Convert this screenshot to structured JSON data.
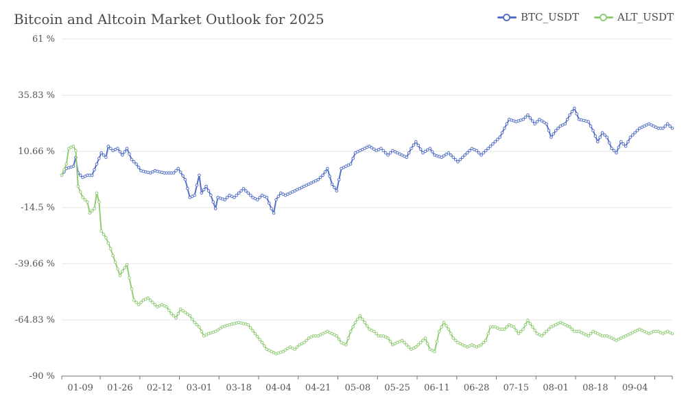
{
  "chart_data": {
    "type": "line",
    "title": "Bitcoin and Altcoin Market Outlook for 2025",
    "y_unit": "%",
    "ylim": [
      -90,
      61
    ],
    "y_ticks": [
      "61 %",
      "35.83 %",
      "10.66 %",
      "-14.5 %",
      "-39.66 %",
      "-64.83 %",
      "-90 %"
    ],
    "y_tick_values": [
      61,
      35.83,
      10.66,
      -14.5,
      -39.66,
      -64.83,
      -90
    ],
    "x_ticks": [
      "01-09",
      "01-26",
      "02-12",
      "03-01",
      "03-18",
      "04-04",
      "04-21",
      "05-08",
      "05-25",
      "06-11",
      "06-28",
      "07-15",
      "08-01",
      "08-18",
      "09-04"
    ],
    "x_tick_day_index": [
      8,
      25,
      42,
      59,
      76,
      93,
      110,
      127,
      144,
      161,
      178,
      195,
      212,
      229,
      246
    ],
    "x_range_days": [
      0,
      262
    ],
    "grid": true,
    "legend_position": "top-right",
    "series": [
      {
        "name": "BTC_USDT",
        "color": "#5470c6",
        "keypoints": [
          [
            0,
            0
          ],
          [
            2,
            3
          ],
          [
            5,
            4
          ],
          [
            6,
            8
          ],
          [
            7,
            1
          ],
          [
            9,
            -1
          ],
          [
            11,
            0
          ],
          [
            13,
            0
          ],
          [
            15,
            5
          ],
          [
            17,
            10
          ],
          [
            19,
            8
          ],
          [
            20,
            13
          ],
          [
            22,
            11
          ],
          [
            24,
            12
          ],
          [
            26,
            9
          ],
          [
            28,
            12
          ],
          [
            30,
            7
          ],
          [
            32,
            5
          ],
          [
            34,
            2
          ],
          [
            38,
            1
          ],
          [
            40,
            2
          ],
          [
            44,
            1
          ],
          [
            48,
            1
          ],
          [
            50,
            3
          ],
          [
            53,
            -2
          ],
          [
            55,
            -10
          ],
          [
            57,
            -9
          ],
          [
            59,
            0
          ],
          [
            60,
            -8
          ],
          [
            62,
            -5
          ],
          [
            64,
            -9
          ],
          [
            66,
            -15
          ],
          [
            67,
            -10
          ],
          [
            70,
            -11
          ],
          [
            72,
            -9
          ],
          [
            74,
            -10
          ],
          [
            76,
            -8
          ],
          [
            78,
            -6
          ],
          [
            80,
            -8
          ],
          [
            82,
            -10
          ],
          [
            84,
            -11
          ],
          [
            86,
            -9
          ],
          [
            88,
            -10
          ],
          [
            90,
            -15
          ],
          [
            91,
            -17
          ],
          [
            92,
            -11
          ],
          [
            94,
            -8
          ],
          [
            96,
            -9
          ],
          [
            98,
            -8
          ],
          [
            100,
            -7
          ],
          [
            110,
            -2
          ],
          [
            112,
            0
          ],
          [
            114,
            3
          ],
          [
            116,
            -4
          ],
          [
            118,
            -7
          ],
          [
            120,
            3
          ],
          [
            122,
            4
          ],
          [
            124,
            5
          ],
          [
            126,
            10
          ],
          [
            130,
            12
          ],
          [
            132,
            13
          ],
          [
            135,
            11
          ],
          [
            137,
            12
          ],
          [
            140,
            9
          ],
          [
            142,
            11
          ],
          [
            144,
            10
          ],
          [
            148,
            8
          ],
          [
            150,
            12
          ],
          [
            152,
            15
          ],
          [
            155,
            10
          ],
          [
            158,
            12
          ],
          [
            160,
            9
          ],
          [
            163,
            8
          ],
          [
            166,
            10
          ],
          [
            168,
            8
          ],
          [
            170,
            6
          ],
          [
            172,
            8
          ],
          [
            174,
            10
          ],
          [
            176,
            12
          ],
          [
            178,
            11
          ],
          [
            180,
            9
          ],
          [
            182,
            11
          ],
          [
            185,
            14
          ],
          [
            188,
            17
          ],
          [
            190,
            21
          ],
          [
            192,
            25
          ],
          [
            195,
            24
          ],
          [
            198,
            25
          ],
          [
            200,
            27
          ],
          [
            203,
            23
          ],
          [
            205,
            25
          ],
          [
            208,
            23
          ],
          [
            210,
            17
          ],
          [
            212,
            20
          ],
          [
            214,
            22
          ],
          [
            216,
            23
          ],
          [
            218,
            27
          ],
          [
            220,
            30
          ],
          [
            222,
            25
          ],
          [
            226,
            24
          ],
          [
            228,
            20
          ],
          [
            230,
            15
          ],
          [
            232,
            19
          ],
          [
            234,
            17
          ],
          [
            236,
            12
          ],
          [
            238,
            10
          ],
          [
            240,
            15
          ],
          [
            242,
            13
          ],
          [
            244,
            17
          ],
          [
            246,
            19
          ],
          [
            248,
            21
          ],
          [
            250,
            22
          ],
          [
            252,
            23
          ],
          [
            254,
            22
          ],
          [
            256,
            21
          ],
          [
            258,
            21
          ],
          [
            260,
            23
          ],
          [
            262,
            21
          ]
        ]
      },
      {
        "name": "ALT_USDT",
        "color": "#91cc75",
        "keypoints": [
          [
            0,
            0
          ],
          [
            2,
            5
          ],
          [
            3,
            12
          ],
          [
            5,
            13
          ],
          [
            6,
            11
          ],
          [
            7,
            -5
          ],
          [
            9,
            -10
          ],
          [
            11,
            -12
          ],
          [
            12,
            -17
          ],
          [
            14,
            -15
          ],
          [
            15,
            -8
          ],
          [
            16,
            -12
          ],
          [
            17,
            -25
          ],
          [
            19,
            -28
          ],
          [
            21,
            -33
          ],
          [
            23,
            -39
          ],
          [
            25,
            -45
          ],
          [
            26,
            -43
          ],
          [
            28,
            -40
          ],
          [
            29,
            -46
          ],
          [
            31,
            -56
          ],
          [
            33,
            -58
          ],
          [
            35,
            -56
          ],
          [
            37,
            -55
          ],
          [
            39,
            -57
          ],
          [
            41,
            -59
          ],
          [
            43,
            -58
          ],
          [
            45,
            -59
          ],
          [
            47,
            -62
          ],
          [
            49,
            -64
          ],
          [
            51,
            -60
          ],
          [
            55,
            -63
          ],
          [
            57,
            -66
          ],
          [
            59,
            -68
          ],
          [
            61,
            -72
          ],
          [
            63,
            -71
          ],
          [
            66,
            -70
          ],
          [
            69,
            -68
          ],
          [
            72,
            -67
          ],
          [
            76,
            -66
          ],
          [
            80,
            -67
          ],
          [
            83,
            -71
          ],
          [
            86,
            -75
          ],
          [
            88,
            -78
          ],
          [
            90,
            -79
          ],
          [
            92,
            -80
          ],
          [
            95,
            -79
          ],
          [
            98,
            -77
          ],
          [
            100,
            -78
          ],
          [
            102,
            -76
          ],
          [
            104,
            -75
          ],
          [
            106,
            -73
          ],
          [
            108,
            -72
          ],
          [
            110,
            -72
          ],
          [
            112,
            -71
          ],
          [
            114,
            -70
          ],
          [
            116,
            -71
          ],
          [
            118,
            -72
          ],
          [
            120,
            -75
          ],
          [
            122,
            -76
          ],
          [
            124,
            -70
          ],
          [
            126,
            -66
          ],
          [
            128,
            -63
          ],
          [
            130,
            -66
          ],
          [
            132,
            -69
          ],
          [
            134,
            -70
          ],
          [
            136,
            -72
          ],
          [
            138,
            -72
          ],
          [
            140,
            -73
          ],
          [
            142,
            -76
          ],
          [
            144,
            -75
          ],
          [
            146,
            -74
          ],
          [
            148,
            -76
          ],
          [
            150,
            -78
          ],
          [
            152,
            -77
          ],
          [
            154,
            -75
          ],
          [
            156,
            -73
          ],
          [
            158,
            -78
          ],
          [
            160,
            -79
          ],
          [
            162,
            -70
          ],
          [
            164,
            -66
          ],
          [
            166,
            -69
          ],
          [
            168,
            -73
          ],
          [
            170,
            -75
          ],
          [
            172,
            -76
          ],
          [
            174,
            -77
          ],
          [
            176,
            -76
          ],
          [
            178,
            -77
          ],
          [
            180,
            -76
          ],
          [
            182,
            -74
          ],
          [
            184,
            -68
          ],
          [
            186,
            -68
          ],
          [
            188,
            -69
          ],
          [
            190,
            -69
          ],
          [
            192,
            -67
          ],
          [
            194,
            -68
          ],
          [
            196,
            -71
          ],
          [
            198,
            -69
          ],
          [
            200,
            -65
          ],
          [
            202,
            -68
          ],
          [
            204,
            -71
          ],
          [
            206,
            -72
          ],
          [
            208,
            -70
          ],
          [
            210,
            -68
          ],
          [
            212,
            -67
          ],
          [
            214,
            -66
          ],
          [
            216,
            -67
          ],
          [
            218,
            -68
          ],
          [
            220,
            -70
          ],
          [
            222,
            -70
          ],
          [
            224,
            -71
          ],
          [
            226,
            -72
          ],
          [
            228,
            -70
          ],
          [
            230,
            -71
          ],
          [
            232,
            -72
          ],
          [
            234,
            -72
          ],
          [
            236,
            -73
          ],
          [
            238,
            -74
          ],
          [
            240,
            -73
          ],
          [
            242,
            -72
          ],
          [
            244,
            -71
          ],
          [
            246,
            -70
          ],
          [
            248,
            -69
          ],
          [
            250,
            -70
          ],
          [
            252,
            -71
          ],
          [
            254,
            -70
          ],
          [
            256,
            -70
          ],
          [
            258,
            -71
          ],
          [
            260,
            -70
          ],
          [
            262,
            -71
          ]
        ]
      }
    ]
  }
}
